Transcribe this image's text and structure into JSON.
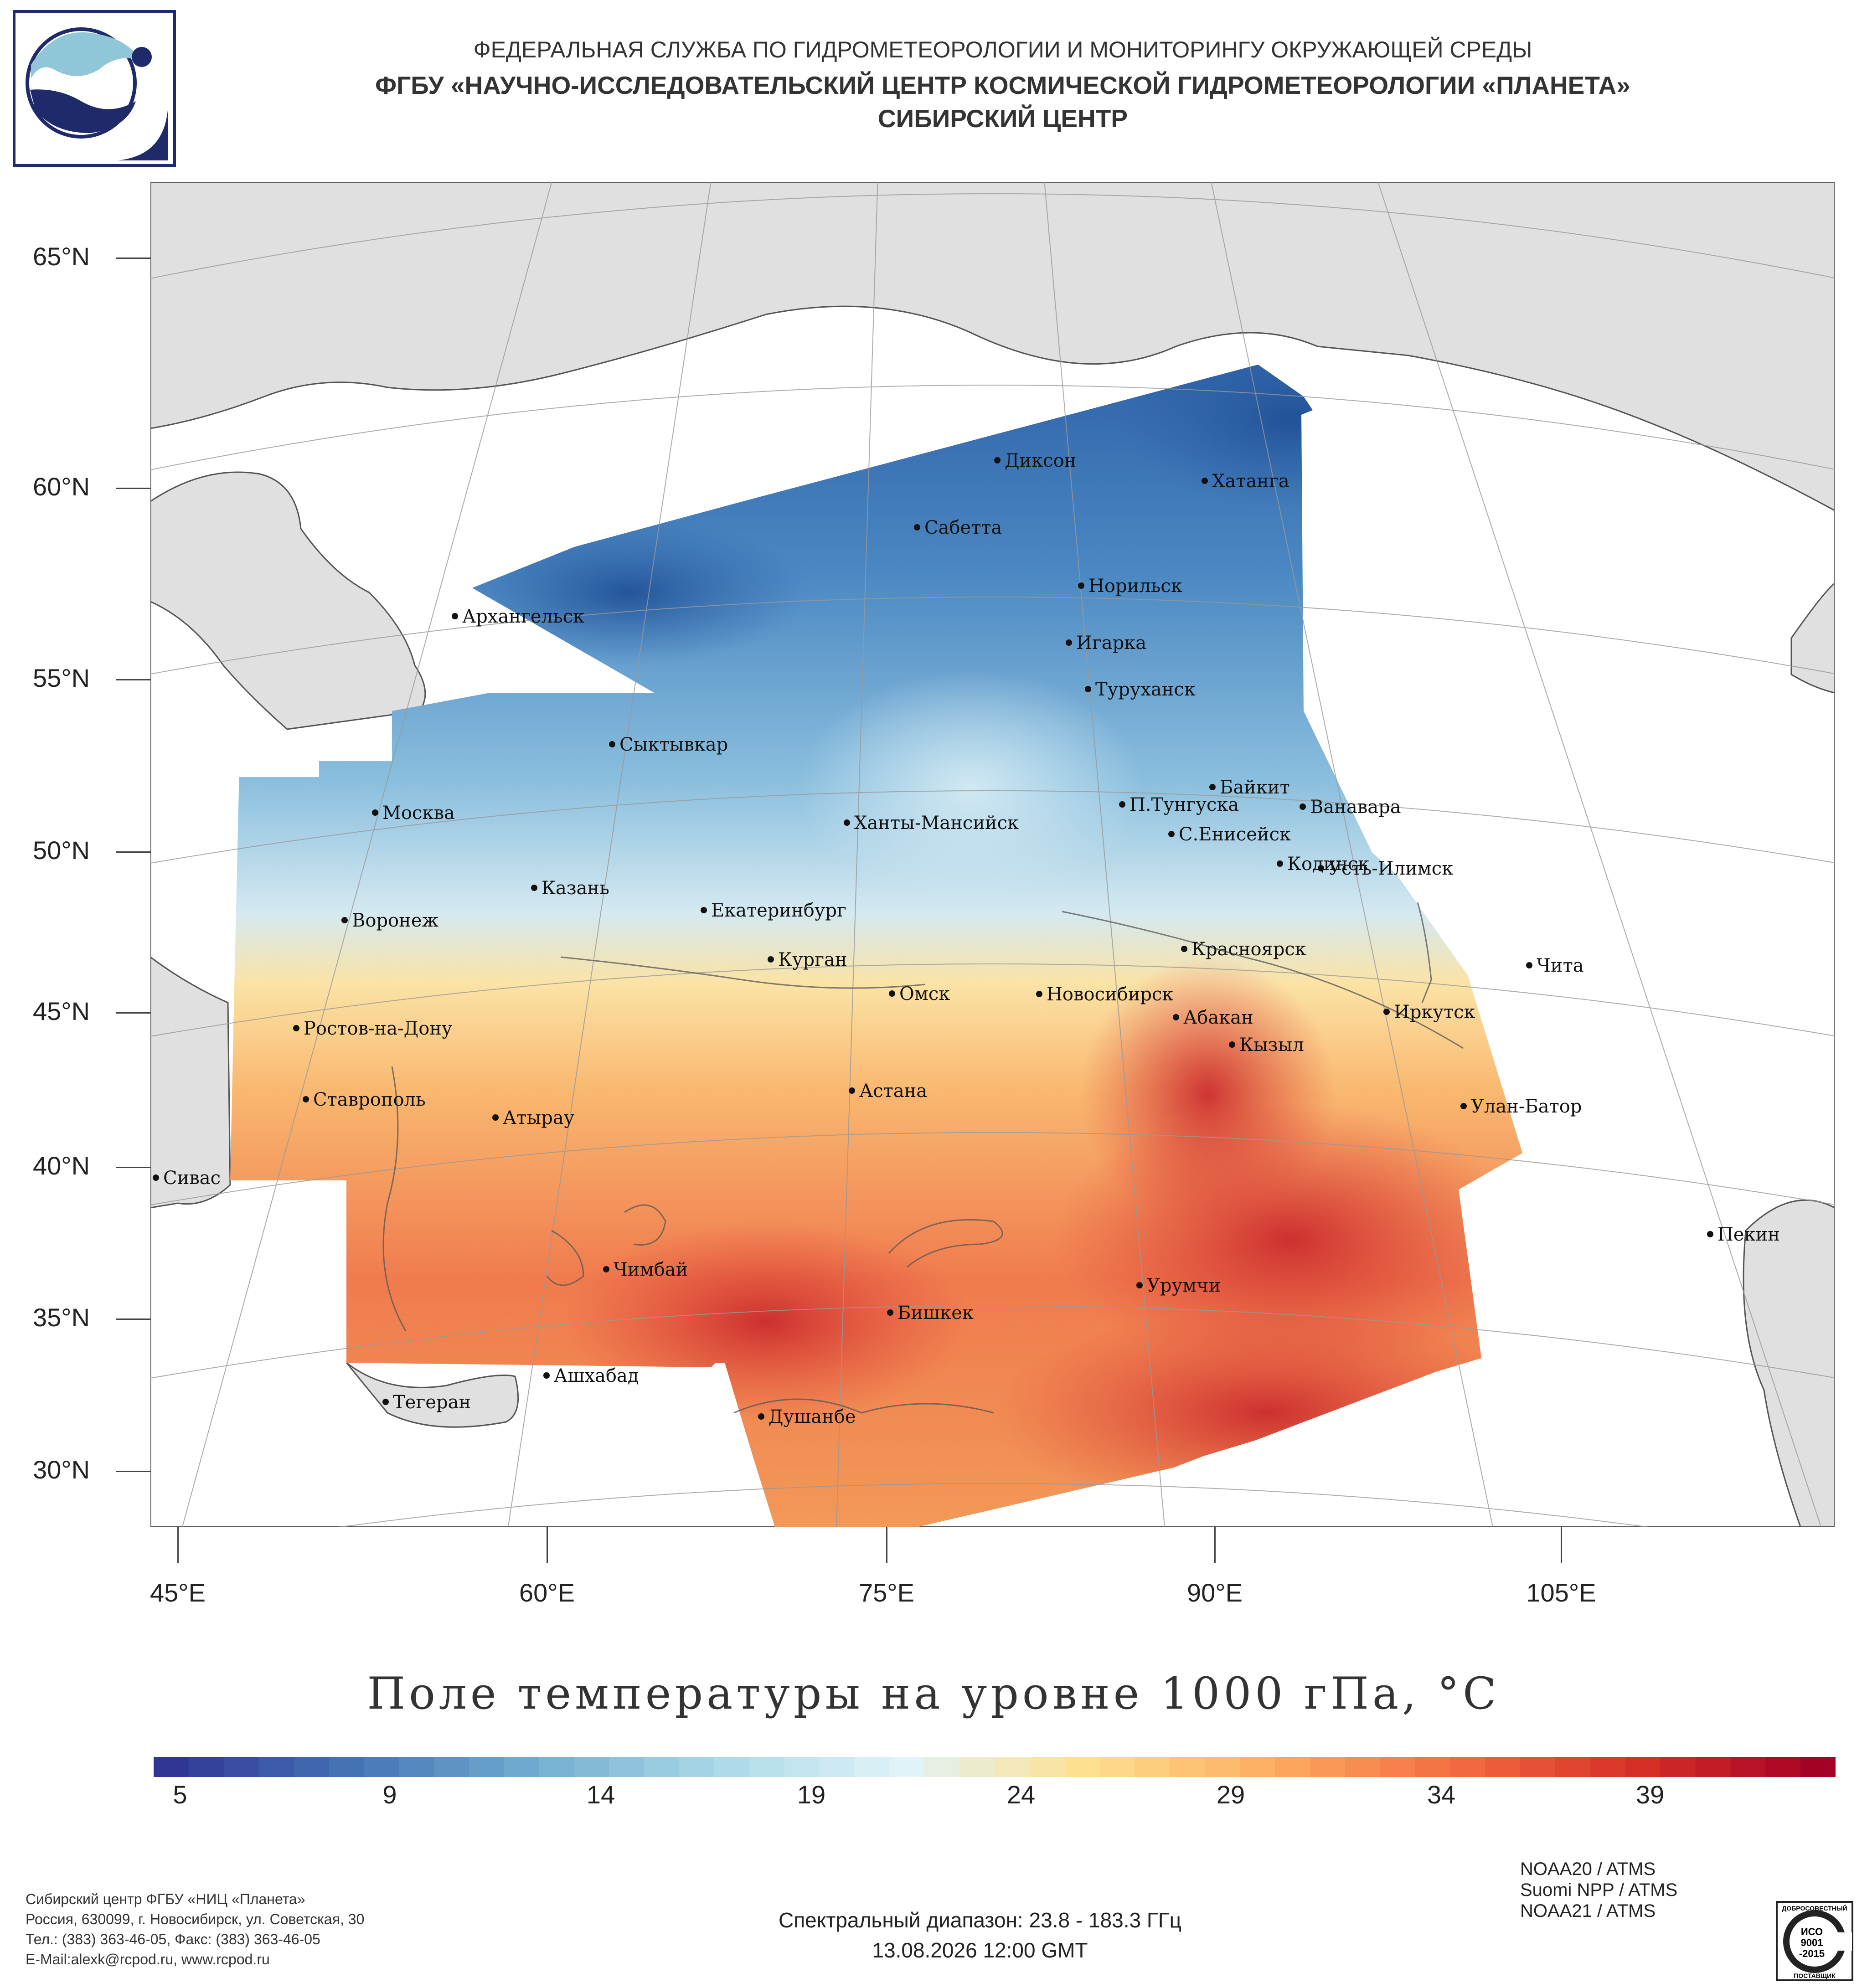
{
  "header": {
    "line1": "ФЕДЕРАЛЬНАЯ СЛУЖБА ПО ГИДРОМЕТЕОРОЛОГИИ И МОНИТОРИНГУ ОКРУЖАЮЩЕЙ СРЕДЫ",
    "line2": "ФГБУ «НАУЧНО-ИССЛЕДОВАТЕЛЬСКИЙ ЦЕНТР КОСМИЧЕСКОЙ ГИДРОМЕТЕОРОЛОГИИ «ПЛАНЕТА»",
    "line3": "СИБИРСКИЙ ЦЕНТР"
  },
  "map": {
    "lat_labels": [
      "65°N",
      "60°N",
      "55°N",
      "50°N",
      "45°N",
      "40°N",
      "35°N",
      "30°N"
    ],
    "lon_labels": [
      "45°E",
      "60°E",
      "75°E",
      "90°E",
      "105°E"
    ],
    "cities": [
      {
        "name": "Диксон"
      },
      {
        "name": "Хатанга"
      },
      {
        "name": "Сабетта"
      },
      {
        "name": "Норильск"
      },
      {
        "name": "Архангельск"
      },
      {
        "name": "Игарка"
      },
      {
        "name": "Туруханск"
      },
      {
        "name": "Сыктывкар"
      },
      {
        "name": "Байкит"
      },
      {
        "name": "Москва"
      },
      {
        "name": "П.Тунгуска"
      },
      {
        "name": "Ванавара"
      },
      {
        "name": "Ханты-Мансийск"
      },
      {
        "name": "С.Енисейск"
      },
      {
        "name": "Кодинск"
      },
      {
        "name": "Усть-Илимск"
      },
      {
        "name": "Казань"
      },
      {
        "name": "Екатеринбург"
      },
      {
        "name": "Воронеж"
      },
      {
        "name": "Красноярск"
      },
      {
        "name": "Курган"
      },
      {
        "name": "Чита"
      },
      {
        "name": "Омск"
      },
      {
        "name": "Новосибирск"
      },
      {
        "name": "Иркутск"
      },
      {
        "name": "Ростов-на-Дону"
      },
      {
        "name": "Абакан"
      },
      {
        "name": "Кызыл"
      },
      {
        "name": "Астана"
      },
      {
        "name": "Ставрополь"
      },
      {
        "name": "Улан-Батор"
      },
      {
        "name": "Атырау"
      },
      {
        "name": "Сивас"
      },
      {
        "name": "Пекин"
      },
      {
        "name": "Чимбай"
      },
      {
        "name": "Урумчи"
      },
      {
        "name": "Бишкек"
      },
      {
        "name": "Ашхабад"
      },
      {
        "name": "Тегеран"
      },
      {
        "name": "Душанбе"
      }
    ]
  },
  "title": "Поле температуры на уровне 1000 гПа, °С",
  "colorbar": {
    "min": 5,
    "max": 43,
    "labels": [
      "5",
      "9",
      "14",
      "19",
      "24",
      "29",
      "34",
      "39"
    ],
    "colors": [
      "#313695",
      "#4575b4",
      "#74add1",
      "#abd9e9",
      "#e0f3f8",
      "#fee090",
      "#fdae61",
      "#f46d43",
      "#d73027",
      "#a50026"
    ]
  },
  "footer": {
    "org_lines": [
      "Сибирский центр ФГБУ «НИЦ «Планета»",
      "Россия, 630099, г. Новосибирск, ул. Советская, 30",
      "Тел.: (383) 363-46-05, Факс: (383) 363-46-05",
      "E-Mail:alexk@rcpod.ru, www.rcpod.ru"
    ],
    "spectral": "Спектральный диапазон: 23.8 - 183.3 ГГц",
    "datetime": "13.08.2026 12:00 GMT",
    "satellites": [
      "NOAA20 / ATMS",
      "Suomi NPP / ATMS",
      "NOAA21 / ATMS"
    ],
    "iso": {
      "top": "ДОБРОСОВЕСТНЫЙ",
      "l1": "ИСО",
      "l2": "9001",
      "l3": "-2015",
      "bottom": "ПОСТАВЩИК"
    }
  }
}
